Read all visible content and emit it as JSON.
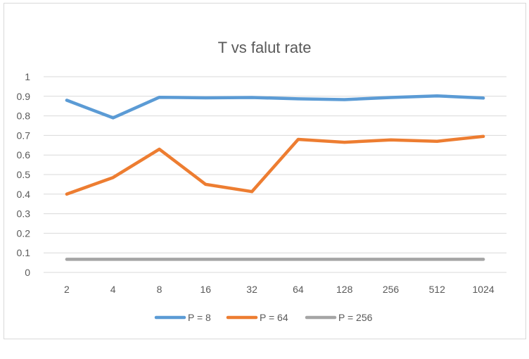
{
  "chart_data": {
    "type": "line",
    "title": "T vs falut rate",
    "xlabel": "",
    "ylabel": "",
    "categories": [
      "2",
      "4",
      "8",
      "16",
      "32",
      "64",
      "128",
      "256",
      "512",
      "1024"
    ],
    "ylim": [
      0,
      1
    ],
    "yticks": [
      "0",
      "0.1",
      "0.2",
      "0.3",
      "0.4",
      "0.5",
      "0.6",
      "0.7",
      "0.8",
      "0.9",
      "1"
    ],
    "grid": true,
    "legend_position": "bottom",
    "series": [
      {
        "name": "P = 8",
        "color": "#5b9bd5",
        "values": [
          0.88,
          0.79,
          0.895,
          0.892,
          0.894,
          0.887,
          0.883,
          0.894,
          0.902,
          0.891
        ]
      },
      {
        "name": "P = 64",
        "color": "#ed7d31",
        "values": [
          0.4,
          0.485,
          0.63,
          0.45,
          0.413,
          0.68,
          0.665,
          0.677,
          0.67,
          0.695
        ]
      },
      {
        "name": "P = 256",
        "color": "#a5a5a5",
        "values": [
          0.067,
          0.067,
          0.067,
          0.067,
          0.067,
          0.067,
          0.067,
          0.067,
          0.067,
          0.067
        ]
      }
    ]
  }
}
